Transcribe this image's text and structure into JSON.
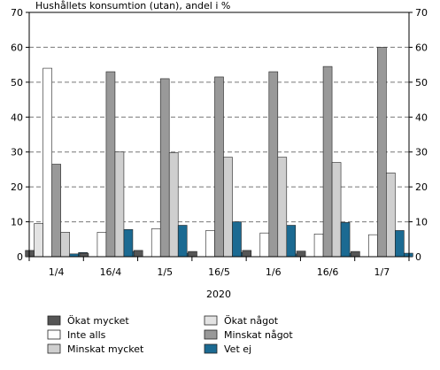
{
  "chart_data": {
    "type": "bar",
    "title": "Hushållets konsumtion (utan), andel i %",
    "xlabel": "2020",
    "ylabel": "",
    "ylim": [
      0,
      70
    ],
    "yticks": [
      0,
      10,
      20,
      30,
      40,
      50,
      60,
      70
    ],
    "grid": "horizontal-dashed",
    "legend_position": "bottom",
    "categories": [
      "1/4",
      "16/4",
      "1/5",
      "16/5",
      "1/6",
      "16/6",
      "1/7"
    ],
    "series": [
      {
        "name": "Ökat mycket",
        "color": "#555555",
        "values": [
          1.8,
          1.0,
          1.8,
          1.5,
          1.8,
          1.6,
          1.5
        ]
      },
      {
        "name": "Ökat något",
        "color": "#e3e3e3",
        "values": [
          9.5,
          0,
          0,
          0,
          0,
          0,
          0
        ]
      },
      {
        "name": "Inte alls",
        "color": "#ffffff",
        "values": [
          54.0,
          7.0,
          8.0,
          7.5,
          6.8,
          6.5,
          6.3
        ]
      },
      {
        "name": "Minskat något",
        "color": "#999999",
        "values": [
          26.5,
          53.0,
          51.0,
          51.5,
          53.0,
          54.5,
          60.0
        ]
      },
      {
        "name": "Minskat mycket",
        "color": "#cfcfcf",
        "values": [
          7.0,
          30.0,
          29.8,
          28.5,
          28.5,
          27.0,
          24.0
        ]
      },
      {
        "name": "Vet ej",
        "color": "#1b6a92",
        "values": [
          0.8,
          7.8,
          9.0,
          10.0,
          9.0,
          9.8,
          7.5
        ]
      }
    ],
    "trailing_bars": [
      1.2,
      1.5,
      1.0,
      1.2,
      0.8,
      1.0,
      1.0
    ]
  }
}
